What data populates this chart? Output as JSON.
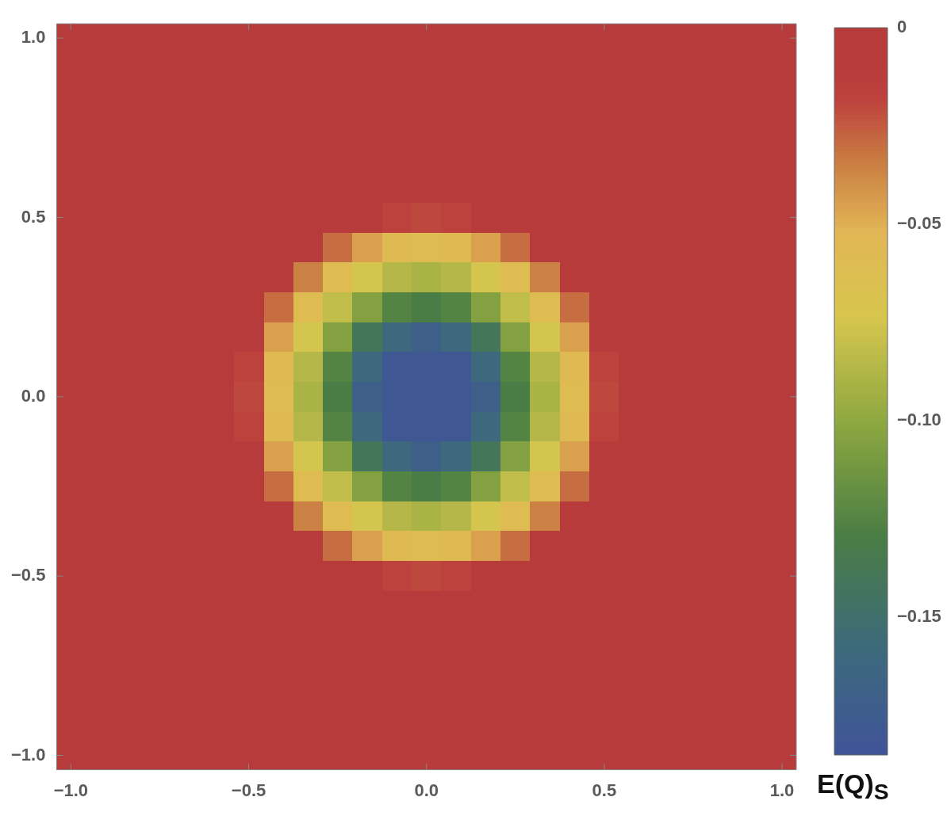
{
  "chart_data": {
    "type": "heatmap",
    "clabel": "E(Q)$_{S}$",
    "xlim": [
      -1.04,
      1.04
    ],
    "ylim": [
      -1.04,
      1.04
    ],
    "xticks": [
      {
        "value": -1,
        "label": "−1.0"
      },
      {
        "value": -0.5,
        "label": "−0.5"
      },
      {
        "value": 0,
        "label": "0.0"
      },
      {
        "value": 0.5,
        "label": "0.5"
      },
      {
        "value": 1,
        "label": "1.0"
      }
    ],
    "yticks": [
      {
        "value": -1,
        "label": "−1.0"
      },
      {
        "value": -0.5,
        "label": "−0.5"
      },
      {
        "value": 0,
        "label": "0.0"
      },
      {
        "value": 0.5,
        "label": "0.5"
      },
      {
        "value": 1,
        "label": "1.0"
      }
    ],
    "clim": [
      -0.185,
      0
    ],
    "cticks": [
      0,
      {
        "value": -0.05,
        "label": "−0.05"
      },
      {
        "value": -0.1,
        "label": "−0.10"
      },
      {
        "value": -0.15,
        "label": "−0.15"
      }
    ],
    "cells": [
      [
        0,
        0,
        0,
        0,
        0,
        0,
        0,
        0,
        0,
        0,
        0,
        0,
        0,
        0,
        0,
        0,
        0,
        0,
        0,
        0,
        0,
        0,
        0,
        0,
        0
      ],
      [
        0,
        0,
        0,
        0,
        0,
        0,
        0,
        0,
        0,
        0,
        0,
        0,
        0,
        0,
        0,
        0,
        0,
        0,
        0,
        0,
        0,
        0,
        0,
        0,
        0
      ],
      [
        0,
        0,
        0,
        0,
        0,
        0,
        0,
        0,
        0,
        0,
        0,
        0,
        0,
        0,
        0,
        0,
        0,
        0,
        0,
        0,
        0,
        0,
        0,
        0,
        0
      ],
      [
        0,
        0,
        0,
        0,
        0,
        0,
        0,
        0,
        0,
        0,
        0,
        0,
        0,
        0,
        0,
        0,
        0,
        0,
        0,
        0,
        0,
        0,
        0,
        0,
        0
      ],
      [
        0,
        0,
        0,
        0,
        0,
        0,
        0,
        0,
        0,
        0,
        0,
        0,
        0,
        0,
        0,
        0,
        0,
        0,
        0,
        0,
        0,
        0,
        0,
        0,
        0
      ],
      [
        0,
        0,
        0,
        0,
        0,
        0,
        0,
        0,
        0,
        0,
        0,
        0,
        0,
        0,
        0,
        0,
        0,
        0,
        0,
        0,
        0,
        0,
        0,
        0,
        0
      ],
      [
        0,
        0,
        0,
        0,
        0,
        0,
        0,
        0,
        0,
        0,
        -0.008,
        -0.018,
        -0.02,
        -0.018,
        -0.008,
        0,
        0,
        0,
        0,
        0,
        0,
        0,
        0,
        0,
        0
      ],
      [
        0,
        0,
        0,
        0,
        0,
        0,
        0,
        0,
        -0.005,
        -0.03,
        -0.045,
        -0.057,
        -0.06,
        -0.057,
        -0.045,
        -0.03,
        -0.005,
        0,
        0,
        0,
        0,
        0,
        0,
        0,
        0
      ],
      [
        0,
        0,
        0,
        0,
        0,
        0,
        0,
        -0.005,
        -0.035,
        -0.06,
        -0.075,
        -0.086,
        -0.09,
        -0.086,
        -0.075,
        -0.06,
        -0.035,
        -0.005,
        0,
        0,
        0,
        0,
        0,
        0,
        0
      ],
      [
        0,
        0,
        0,
        0,
        0,
        0,
        0,
        -0.03,
        -0.06,
        -0.082,
        -0.105,
        -0.125,
        -0.13,
        -0.125,
        -0.105,
        -0.082,
        -0.06,
        -0.03,
        0,
        0,
        0,
        0,
        0,
        0,
        0
      ],
      [
        0,
        0,
        0,
        0,
        0,
        0,
        -0.008,
        -0.045,
        -0.075,
        -0.105,
        -0.14,
        -0.16,
        -0.17,
        -0.16,
        -0.14,
        -0.105,
        -0.075,
        -0.045,
        -0.008,
        0,
        0,
        0,
        0,
        0,
        0
      ],
      [
        0,
        0,
        0,
        0,
        0,
        0,
        -0.018,
        -0.057,
        -0.086,
        -0.125,
        -0.16,
        -0.18,
        -0.18,
        -0.18,
        -0.16,
        -0.125,
        -0.086,
        -0.057,
        -0.018,
        0,
        0,
        0,
        0,
        0,
        0
      ],
      [
        0,
        0,
        0,
        0,
        0,
        0,
        -0.02,
        -0.06,
        -0.09,
        -0.13,
        -0.17,
        -0.18,
        -0.18,
        -0.18,
        -0.17,
        -0.13,
        -0.09,
        -0.06,
        -0.02,
        0,
        0,
        0,
        0,
        0,
        0
      ],
      [
        0,
        0,
        0,
        0,
        0,
        0,
        -0.018,
        -0.057,
        -0.086,
        -0.125,
        -0.16,
        -0.18,
        -0.18,
        -0.18,
        -0.16,
        -0.125,
        -0.086,
        -0.057,
        -0.018,
        0,
        0,
        0,
        0,
        0,
        0
      ],
      [
        0,
        0,
        0,
        0,
        0,
        0,
        -0.008,
        -0.045,
        -0.075,
        -0.105,
        -0.14,
        -0.16,
        -0.17,
        -0.16,
        -0.14,
        -0.105,
        -0.075,
        -0.045,
        -0.008,
        0,
        0,
        0,
        0,
        0,
        0
      ],
      [
        0,
        0,
        0,
        0,
        0,
        0,
        0,
        -0.03,
        -0.06,
        -0.082,
        -0.105,
        -0.125,
        -0.13,
        -0.125,
        -0.105,
        -0.082,
        -0.06,
        -0.03,
        0,
        0,
        0,
        0,
        0,
        0,
        0
      ],
      [
        0,
        0,
        0,
        0,
        0,
        0,
        0,
        -0.005,
        -0.035,
        -0.06,
        -0.075,
        -0.086,
        -0.09,
        -0.086,
        -0.075,
        -0.06,
        -0.035,
        -0.005,
        0,
        0,
        0,
        0,
        0,
        0,
        0
      ],
      [
        0,
        0,
        0,
        0,
        0,
        0,
        0,
        0,
        -0.005,
        -0.03,
        -0.045,
        -0.057,
        -0.06,
        -0.057,
        -0.045,
        -0.03,
        -0.005,
        0,
        0,
        0,
        0,
        0,
        0,
        0,
        0
      ],
      [
        0,
        0,
        0,
        0,
        0,
        0,
        0,
        0,
        0,
        0,
        -0.008,
        -0.018,
        -0.02,
        -0.018,
        -0.008,
        0,
        0,
        0,
        0,
        0,
        0,
        0,
        0,
        0,
        0
      ],
      [
        0,
        0,
        0,
        0,
        0,
        0,
        0,
        0,
        0,
        0,
        0,
        0,
        0,
        0,
        0,
        0,
        0,
        0,
        0,
        0,
        0,
        0,
        0,
        0,
        0
      ],
      [
        0,
        0,
        0,
        0,
        0,
        0,
        0,
        0,
        0,
        0,
        0,
        0,
        0,
        0,
        0,
        0,
        0,
        0,
        0,
        0,
        0,
        0,
        0,
        0,
        0
      ],
      [
        0,
        0,
        0,
        0,
        0,
        0,
        0,
        0,
        0,
        0,
        0,
        0,
        0,
        0,
        0,
        0,
        0,
        0,
        0,
        0,
        0,
        0,
        0,
        0,
        0
      ],
      [
        0,
        0,
        0,
        0,
        0,
        0,
        0,
        0,
        0,
        0,
        0,
        0,
        0,
        0,
        0,
        0,
        0,
        0,
        0,
        0,
        0,
        0,
        0,
        0,
        0
      ],
      [
        0,
        0,
        0,
        0,
        0,
        0,
        0,
        0,
        0,
        0,
        0,
        0,
        0,
        0,
        0,
        0,
        0,
        0,
        0,
        0,
        0,
        0,
        0,
        0,
        0
      ],
      [
        0,
        0,
        0,
        0,
        0,
        0,
        0,
        0,
        0,
        0,
        0,
        0,
        0,
        0,
        0,
        0,
        0,
        0,
        0,
        0,
        0,
        0,
        0,
        0,
        0
      ]
    ]
  }
}
